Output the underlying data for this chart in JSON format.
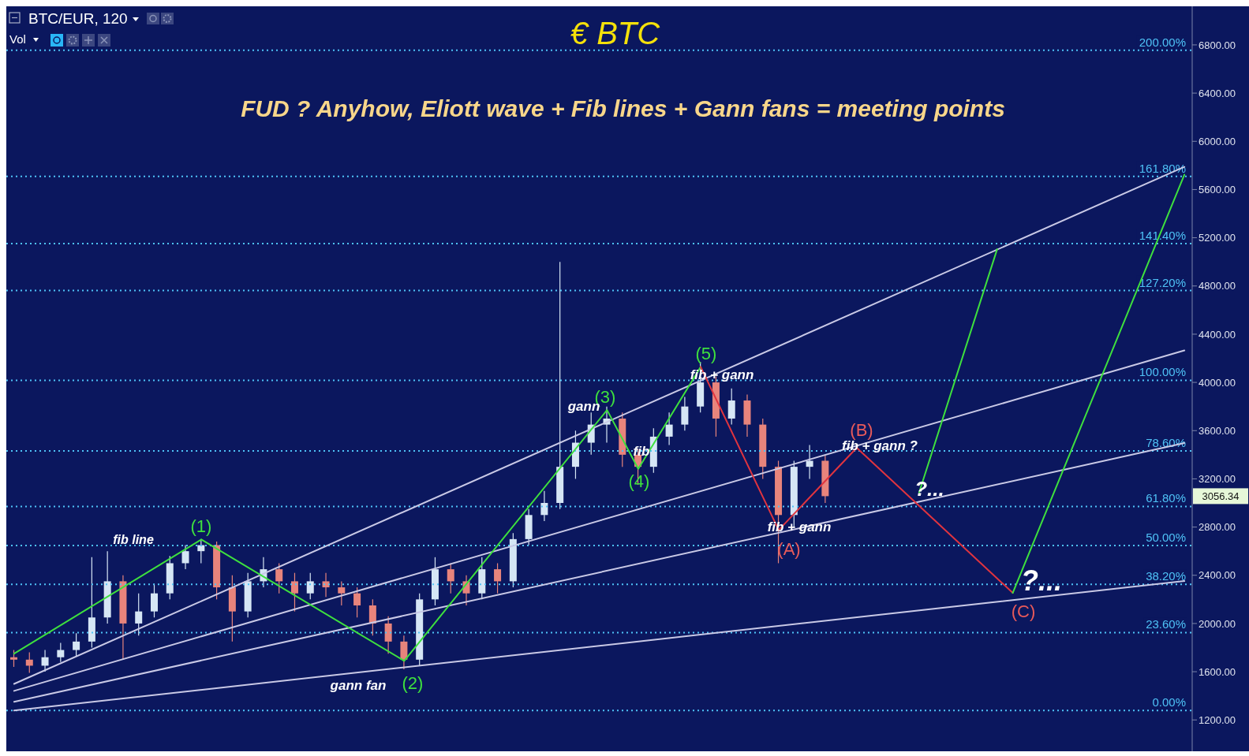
{
  "chart_data": {
    "type": "candlestick",
    "title": "€ BTC",
    "subtitle": "FUD ? Anyhow, Eliott wave + Fib lines + Gann fans = meeting points",
    "categories": [
      null,
      null,
      null,
      null,
      null,
      null,
      null,
      null,
      null,
      null,
      null,
      null,
      null,
      null,
      null,
      null,
      null,
      null,
      null,
      null,
      null,
      null,
      null,
      null,
      null,
      null,
      null,
      null,
      null,
      null,
      null,
      null,
      null,
      null,
      null,
      null,
      null,
      null,
      null,
      null,
      null,
      null,
      null,
      null,
      null,
      null,
      null,
      null,
      null,
      null,
      null,
      null,
      null,
      null,
      null,
      null,
      null,
      null,
      null,
      null,
      null,
      null,
      null,
      null,
      null,
      null,
      null,
      null,
      null,
      null,
      null,
      null,
      null,
      null,
      null,
      null
    ],
    "ohlc": [
      [
        1720,
        1780,
        1640,
        1700
      ],
      [
        1700,
        1760,
        1590,
        1650
      ],
      [
        1650,
        1780,
        1600,
        1720
      ],
      [
        1720,
        1840,
        1680,
        1780
      ],
      [
        1780,
        1920,
        1730,
        1850
      ],
      [
        1850,
        2550,
        1800,
        2050
      ],
      [
        2050,
        2600,
        2000,
        2350
      ],
      [
        2350,
        2400,
        1700,
        2000
      ],
      [
        2000,
        2250,
        1900,
        2100
      ],
      [
        2100,
        2330,
        2050,
        2250
      ],
      [
        2250,
        2560,
        2200,
        2500
      ],
      [
        2500,
        2650,
        2450,
        2600
      ],
      [
        2600,
        2700,
        2500,
        2650
      ],
      [
        2650,
        2680,
        2200,
        2300
      ],
      [
        2300,
        2400,
        1850,
        2100
      ],
      [
        2100,
        2420,
        2050,
        2350
      ],
      [
        2350,
        2550,
        2300,
        2450
      ],
      [
        2450,
        2500,
        2250,
        2350
      ],
      [
        2350,
        2420,
        2100,
        2250
      ],
      [
        2250,
        2420,
        2200,
        2350
      ],
      [
        2350,
        2420,
        2220,
        2300
      ],
      [
        2300,
        2350,
        2150,
        2250
      ],
      [
        2250,
        2300,
        2050,
        2150
      ],
      [
        2150,
        2200,
        1900,
        2000
      ],
      [
        2000,
        2060,
        1750,
        1850
      ],
      [
        1850,
        1900,
        1620,
        1700
      ],
      [
        1700,
        2250,
        1650,
        2200
      ],
      [
        2200,
        2550,
        2150,
        2450
      ],
      [
        2450,
        2500,
        2250,
        2350
      ],
      [
        2350,
        2400,
        2150,
        2250
      ],
      [
        2250,
        2550,
        2200,
        2450
      ],
      [
        2450,
        2500,
        2250,
        2350
      ],
      [
        2350,
        2750,
        2300,
        2700
      ],
      [
        2700,
        2950,
        2650,
        2900
      ],
      [
        2900,
        3100,
        2850,
        3000
      ],
      [
        3000,
        5000,
        2950,
        3300
      ],
      [
        3300,
        3600,
        3200,
        3500
      ],
      [
        3500,
        3750,
        3400,
        3650
      ],
      [
        3650,
        3800,
        3500,
        3700
      ],
      [
        3700,
        3750,
        3300,
        3400
      ],
      [
        3400,
        3450,
        3150,
        3300
      ],
      [
        3300,
        3620,
        3250,
        3550
      ],
      [
        3550,
        3750,
        3480,
        3650
      ],
      [
        3650,
        3880,
        3600,
        3800
      ],
      [
        3800,
        4170,
        3750,
        4000
      ],
      [
        4000,
        4050,
        3550,
        3700
      ],
      [
        3700,
        3950,
        3650,
        3850
      ],
      [
        3850,
        3900,
        3550,
        3650
      ],
      [
        3650,
        3700,
        3200,
        3300
      ],
      [
        3300,
        3350,
        2500,
        2900
      ],
      [
        2900,
        3350,
        2800,
        3300
      ],
      [
        3300,
        3480,
        3200,
        3350
      ],
      [
        3350,
        3400,
        3000,
        3056.34
      ],
      null,
      null,
      null,
      null,
      null,
      null,
      null,
      null,
      null,
      null,
      null,
      null,
      null,
      null,
      null,
      null,
      null,
      null,
      null,
      null,
      null,
      null,
      null
    ],
    "colors": [
      "#e8847c",
      "#e8847c",
      "#d6e6f5",
      "#d6e6f5",
      "#d6e6f5",
      "#d6e6f5",
      "#d6e6f5",
      "#e8847c",
      "#d6e6f5",
      "#d6e6f5",
      "#d6e6f5",
      "#d6e6f5",
      "#d6e6f5",
      "#e8847c",
      "#e8847c",
      "#d6e6f5",
      "#d6e6f5",
      "#e8847c",
      "#e8847c",
      "#d6e6f5",
      "#e8847c",
      "#e8847c",
      "#e8847c",
      "#e8847c",
      "#e8847c",
      "#e8847c",
      "#d6e6f5",
      "#d6e6f5",
      "#e8847c",
      "#e8847c",
      "#d6e6f5",
      "#e8847c",
      "#d6e6f5",
      "#d6e6f5",
      "#d6e6f5",
      "#d6e6f5",
      "#d6e6f5",
      "#d6e6f5",
      "#d6e6f5",
      "#e8847c",
      "#e8847c",
      "#d6e6f5",
      "#d6e6f5",
      "#d6e6f5",
      "#d6e6f5",
      "#e8847c",
      "#d6e6f5",
      "#e8847c",
      "#e8847c",
      "#e8847c",
      "#d6e6f5",
      "#d6e6f5",
      "#e8847c",
      null,
      null,
      null,
      null,
      null,
      null,
      null,
      null,
      null,
      null,
      null,
      null,
      null,
      null,
      null,
      null,
      null,
      null,
      null,
      null,
      null,
      null,
      null
    ],
    "series": [
      {
        "type": "line",
        "color": "#c9c9e6",
        "values": [
          1499,
          null,
          null,
          null,
          null,
          null,
          null,
          null,
          null,
          null,
          null,
          null,
          null,
          null,
          null,
          null,
          null,
          null,
          null,
          null,
          null,
          null,
          null,
          null,
          null,
          null,
          null,
          null,
          null,
          null,
          null,
          null,
          null,
          null,
          null,
          null,
          null,
          null,
          null,
          null,
          null,
          null,
          null,
          null,
          null,
          null,
          null,
          null,
          null,
          null,
          null,
          null,
          null,
          null,
          null,
          null,
          null,
          null,
          null,
          null,
          null,
          null,
          null,
          null,
          null,
          null,
          null,
          null,
          null,
          null,
          null,
          null,
          null,
          null,
          null,
          5788
        ]
      },
      {
        "type": "line",
        "color": "#c9c9e6",
        "values": [
          1441,
          null,
          null,
          null,
          null,
          null,
          null,
          null,
          null,
          null,
          null,
          null,
          null,
          null,
          null,
          null,
          null,
          null,
          null,
          null,
          null,
          null,
          null,
          null,
          null,
          null,
          null,
          null,
          null,
          null,
          null,
          null,
          null,
          null,
          null,
          null,
          null,
          null,
          null,
          null,
          null,
          null,
          null,
          null,
          null,
          null,
          null,
          null,
          null,
          null,
          null,
          null,
          null,
          null,
          null,
          null,
          null,
          null,
          null,
          null,
          null,
          null,
          null,
          null,
          null,
          null,
          null,
          null,
          null,
          null,
          null,
          null,
          null,
          null,
          null,
          4265
        ]
      },
      {
        "type": "line",
        "color": "#c9c9e6",
        "values": [
          1350,
          null,
          null,
          null,
          null,
          null,
          null,
          null,
          null,
          null,
          null,
          null,
          null,
          null,
          null,
          null,
          null,
          null,
          null,
          null,
          null,
          null,
          null,
          null,
          null,
          null,
          null,
          null,
          null,
          null,
          null,
          null,
          null,
          null,
          null,
          null,
          null,
          null,
          null,
          null,
          null,
          null,
          null,
          null,
          null,
          null,
          null,
          null,
          null,
          null,
          null,
          null,
          null,
          null,
          null,
          null,
          null,
          null,
          null,
          null,
          null,
          null,
          null,
          null,
          null,
          null,
          null,
          null,
          null,
          null,
          null,
          null,
          null,
          null,
          null,
          3497
        ]
      },
      {
        "type": "line",
        "color": "#c9c9e6",
        "values": [
          1278,
          null,
          null,
          null,
          null,
          null,
          null,
          null,
          null,
          null,
          null,
          null,
          null,
          null,
          null,
          null,
          null,
          null,
          null,
          null,
          null,
          null,
          null,
          null,
          null,
          null,
          null,
          null,
          null,
          null,
          null,
          null,
          null,
          null,
          null,
          null,
          null,
          null,
          null,
          null,
          null,
          null,
          null,
          null,
          null,
          null,
          null,
          null,
          null,
          null,
          null,
          null,
          null,
          null,
          null,
          null,
          null,
          null,
          null,
          null,
          null,
          null,
          null,
          null,
          null,
          null,
          null,
          null,
          null,
          null,
          null,
          null,
          null,
          null,
          null,
          2352
        ]
      },
      {
        "type": "line",
        "color": "#3ee03e",
        "values": [
          1750,
          null,
          null,
          null,
          null,
          null,
          null,
          null,
          null,
          null,
          null,
          null,
          2697,
          null,
          null,
          null,
          null,
          null,
          null,
          null,
          null,
          null,
          null,
          null,
          null,
          1690,
          null,
          null,
          null,
          null,
          null,
          null,
          null,
          null,
          null,
          null,
          null,
          null,
          3771,
          null,
          3283,
          null,
          null,
          null,
          4129,
          null,
          null,
          null,
          null,
          null,
          null,
          null,
          null,
          null,
          null,
          null,
          null,
          null,
          null,
          null,
          null,
          null,
          null,
          null,
          null,
          null,
          null,
          null,
          null,
          null,
          null,
          null,
          null,
          null,
          null,
          null
        ]
      },
      {
        "type": "line",
        "color": "#e0343f",
        "values": [
          null,
          null,
          null,
          null,
          null,
          null,
          null,
          null,
          null,
          null,
          null,
          null,
          null,
          null,
          null,
          null,
          null,
          null,
          null,
          null,
          null,
          null,
          null,
          null,
          null,
          null,
          null,
          null,
          null,
          null,
          null,
          null,
          null,
          null,
          null,
          null,
          null,
          null,
          null,
          null,
          null,
          null,
          null,
          null,
          4129,
          null,
          null,
          null,
          null,
          2775,
          null,
          null,
          null,
          null,
          3458,
          null,
          null,
          null,
          null,
          null,
          null,
          null,
          null,
          null,
          2254,
          null,
          null,
          null,
          null,
          null,
          null,
          null,
          null,
          null,
          null,
          null
        ]
      },
      {
        "type": "line",
        "color": "#3ee03e",
        "values": [
          null,
          null,
          null,
          null,
          null,
          null,
          null,
          null,
          null,
          null,
          null,
          null,
          null,
          null,
          null,
          null,
          null,
          null,
          null,
          null,
          null,
          null,
          null,
          null,
          null,
          null,
          null,
          null,
          null,
          null,
          null,
          null,
          null,
          null,
          null,
          null,
          null,
          null,
          null,
          null,
          null,
          null,
          null,
          null,
          null,
          null,
          null,
          null,
          null,
          null,
          null,
          null,
          null,
          null,
          null,
          null,
          null,
          null,
          3087,
          null,
          null,
          null,
          null,
          5105,
          null,
          null,
          null,
          null,
          null,
          null,
          null,
          null,
          null,
          null,
          null,
          null
        ]
      },
      {
        "type": "line",
        "color": "#3ee03e",
        "values": [
          null,
          null,
          null,
          null,
          null,
          null,
          null,
          null,
          null,
          null,
          null,
          null,
          null,
          null,
          null,
          null,
          null,
          null,
          null,
          null,
          null,
          null,
          null,
          null,
          null,
          null,
          null,
          null,
          null,
          null,
          null,
          null,
          null,
          null,
          null,
          null,
          null,
          null,
          null,
          null,
          null,
          null,
          null,
          null,
          null,
          null,
          null,
          null,
          null,
          null,
          null,
          null,
          null,
          null,
          null,
          null,
          null,
          null,
          null,
          null,
          null,
          null,
          null,
          null,
          2254,
          null,
          null,
          null,
          null,
          null,
          null,
          null,
          null,
          null,
          null,
          5723
        ]
      }
    ],
    "ylim": [
      940,
      7120
    ],
    "yticks": [
      {
        "value": 1200,
        "label": "1200.00"
      },
      {
        "value": 1600,
        "label": "1600.00"
      },
      {
        "value": 2000,
        "label": "2000.00"
      },
      {
        "value": 2400,
        "label": "2400.00"
      },
      {
        "value": 2800,
        "label": "2800.00"
      },
      {
        "value": 3200,
        "label": "3200.00"
      },
      {
        "value": 3600,
        "label": "3600.00"
      },
      {
        "value": 4000,
        "label": "4000.00"
      },
      {
        "value": 4400,
        "label": "4400.00"
      },
      {
        "value": 4800,
        "label": "4800.00"
      },
      {
        "value": 5200,
        "label": "5200.00"
      },
      {
        "value": 5600,
        "label": "5600.00"
      },
      {
        "value": 6000,
        "label": "6000.00"
      },
      {
        "value": 6400,
        "label": "6400.00"
      },
      {
        "value": 6800,
        "label": "6800.00"
      }
    ],
    "y2lim": [
      -12.34,
      213.29
    ],
    "tick_labels": "y",
    "ref_lines": [
      {
        "axis": "y2",
        "value": 200,
        "label": "200.00%",
        "color": "#4fc3f7",
        "line_style": "dotted"
      },
      {
        "axis": "y2",
        "value": 161.8,
        "label": "161.80%",
        "color": "#4fc3f7",
        "line_style": "dotted"
      },
      {
        "axis": "y2",
        "value": 141.4,
        "label": "141.40%",
        "color": "#4fc3f7",
        "line_style": "dotted"
      },
      {
        "axis": "y2",
        "value": 127.2,
        "label": "127.20%",
        "color": "#4fc3f7",
        "line_style": "dotted"
      },
      {
        "axis": "y2",
        "value": 100,
        "label": "100.00%",
        "color": "#4fc3f7",
        "line_style": "dotted"
      },
      {
        "axis": "y2",
        "value": 78.6,
        "label": "78.60%",
        "color": "#4fc3f7",
        "line_style": "dotted"
      },
      {
        "axis": "y2",
        "value": 61.8,
        "label": "61.80%",
        "color": "#4fc3f7",
        "line_style": "dotted"
      },
      {
        "axis": "y2",
        "value": 50,
        "label": "50.00%",
        "color": "#4fc3f7",
        "line_style": "dotted"
      },
      {
        "axis": "y2",
        "value": 38.2,
        "label": "38.20%",
        "color": "#4fc3f7",
        "line_style": "dotted"
      },
      {
        "axis": "y2",
        "value": 23.6,
        "label": "23.60%",
        "color": "#4fc3f7",
        "line_style": "dotted"
      },
      {
        "axis": "y2",
        "value": 0,
        "label": "0.00%",
        "color": "#4fc3f7",
        "line_style": "dotted"
      }
    ],
    "annotations": [
      "BTC/EUR, 120",
      "Vol",
      "3056.34",
      "(1)",
      "(2)",
      "(3)",
      "(4)",
      "(5)",
      "(A)",
      "(B)",
      "(C)",
      "fib line",
      "gann fan",
      "gann",
      "fib",
      "fib + gann",
      "fib + gann",
      "fib + gann ?",
      "?...",
      "?..."
    ]
  }
}
